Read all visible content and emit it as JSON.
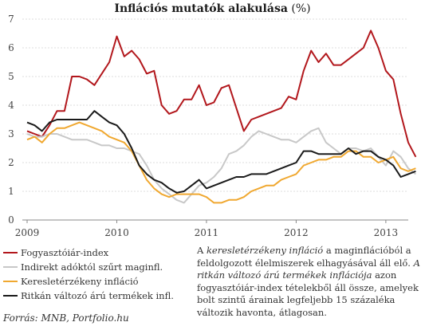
{
  "title": "Inflációs mutatók alakulása",
  "title_unit": "(%)",
  "source": "Forrás: MNB, Portfolio.hu",
  "note": {
    "part1": "A ",
    "part2_italic": "keresletérzékeny infláció",
    "part3": " a maginflációból a feldolgozott élelmiszerek elhagyásával áll elő. ",
    "part4_italic": "A ritkán változó árú termékek inflációja",
    "part5": " azon fogyasztóiár-index tételekből áll össze, amelyek bolt szintű árainak legfeljebb 15 százaléka változik havonta, átlagosan."
  },
  "chart_data": {
    "type": "line",
    "title": "Inflációs mutatók alakulása",
    "ylabel": "",
    "xlabel": "",
    "ylim": [
      0,
      7
    ],
    "y_ticks": [
      "0",
      "1",
      "2",
      "3",
      "4",
      "5",
      "6",
      "7"
    ],
    "x_ticks": [
      {
        "label": "2009",
        "x": 2009.0
      },
      {
        "label": "2010",
        "x": 2010.0
      },
      {
        "label": "2011",
        "x": 2011.0
      },
      {
        "label": "2012",
        "x": 2012.0
      },
      {
        "label": "2013",
        "x": 2013.0
      }
    ],
    "x_start": 2009.0,
    "x_step": 0.0833333,
    "grid": "horizontal",
    "legend_position": "bottom-left",
    "series": [
      {
        "name": "Fogyasztóiár-index",
        "color": "#b2171c",
        "values": [
          3.1,
          3.0,
          2.9,
          3.3,
          3.8,
          3.8,
          5.0,
          5.0,
          4.9,
          4.7,
          5.1,
          5.5,
          6.4,
          5.7,
          5.9,
          5.6,
          5.1,
          5.2,
          4.0,
          3.7,
          3.8,
          4.2,
          4.2,
          4.7,
          4.0,
          4.1,
          4.6,
          4.7,
          3.9,
          3.1,
          3.5,
          3.6,
          3.7,
          3.8,
          3.9,
          4.3,
          4.2,
          5.2,
          5.9,
          5.5,
          5.8,
          5.4,
          5.4,
          5.6,
          5.8,
          6.0,
          6.6,
          6.0,
          5.2,
          4.9,
          3.7,
          2.7,
          2.2
        ]
      },
      {
        "name": "Indirekt adóktól szűrt maginfl.",
        "color": "#c8c8c8",
        "values": [
          3.0,
          2.9,
          2.9,
          3.0,
          3.0,
          2.9,
          2.8,
          2.8,
          2.8,
          2.7,
          2.6,
          2.6,
          2.5,
          2.5,
          2.4,
          2.3,
          1.9,
          1.4,
          1.1,
          0.9,
          0.7,
          0.6,
          0.9,
          1.2,
          1.3,
          1.5,
          1.8,
          2.3,
          2.4,
          2.6,
          2.9,
          3.1,
          3.0,
          2.9,
          2.8,
          2.8,
          2.7,
          2.9,
          3.1,
          3.2,
          2.7,
          2.5,
          2.3,
          2.5,
          2.5,
          2.4,
          2.5,
          2.2,
          1.9,
          2.4,
          2.2,
          1.8,
          1.6
        ]
      },
      {
        "name": "Keresletérzékeny infláció",
        "color": "#f0a830",
        "values": [
          2.8,
          2.9,
          2.7,
          3.0,
          3.2,
          3.2,
          3.3,
          3.4,
          3.3,
          3.2,
          3.1,
          2.9,
          2.8,
          2.7,
          2.4,
          1.9,
          1.4,
          1.1,
          0.9,
          0.8,
          0.9,
          0.9,
          0.9,
          0.9,
          0.8,
          0.6,
          0.6,
          0.7,
          0.7,
          0.8,
          1.0,
          1.1,
          1.2,
          1.2,
          1.4,
          1.5,
          1.6,
          1.9,
          2.0,
          2.1,
          2.1,
          2.2,
          2.2,
          2.4,
          2.4,
          2.2,
          2.2,
          2.0,
          2.1,
          2.2,
          1.8,
          1.7,
          1.8
        ]
      },
      {
        "name": "Ritkán változó árú termékek infl.",
        "color": "#1a1a1a",
        "values": [
          3.4,
          3.3,
          3.1,
          3.4,
          3.5,
          3.5,
          3.5,
          3.5,
          3.5,
          3.8,
          3.6,
          3.4,
          3.3,
          3.0,
          2.5,
          1.9,
          1.6,
          1.4,
          1.3,
          1.1,
          0.95,
          1.0,
          1.2,
          1.4,
          1.1,
          1.2,
          1.3,
          1.4,
          1.5,
          1.5,
          1.6,
          1.6,
          1.6,
          1.7,
          1.8,
          1.9,
          2.0,
          2.4,
          2.4,
          2.3,
          2.3,
          2.3,
          2.3,
          2.5,
          2.3,
          2.4,
          2.4,
          2.2,
          2.1,
          1.9,
          1.5,
          1.6,
          1.7
        ]
      }
    ]
  }
}
